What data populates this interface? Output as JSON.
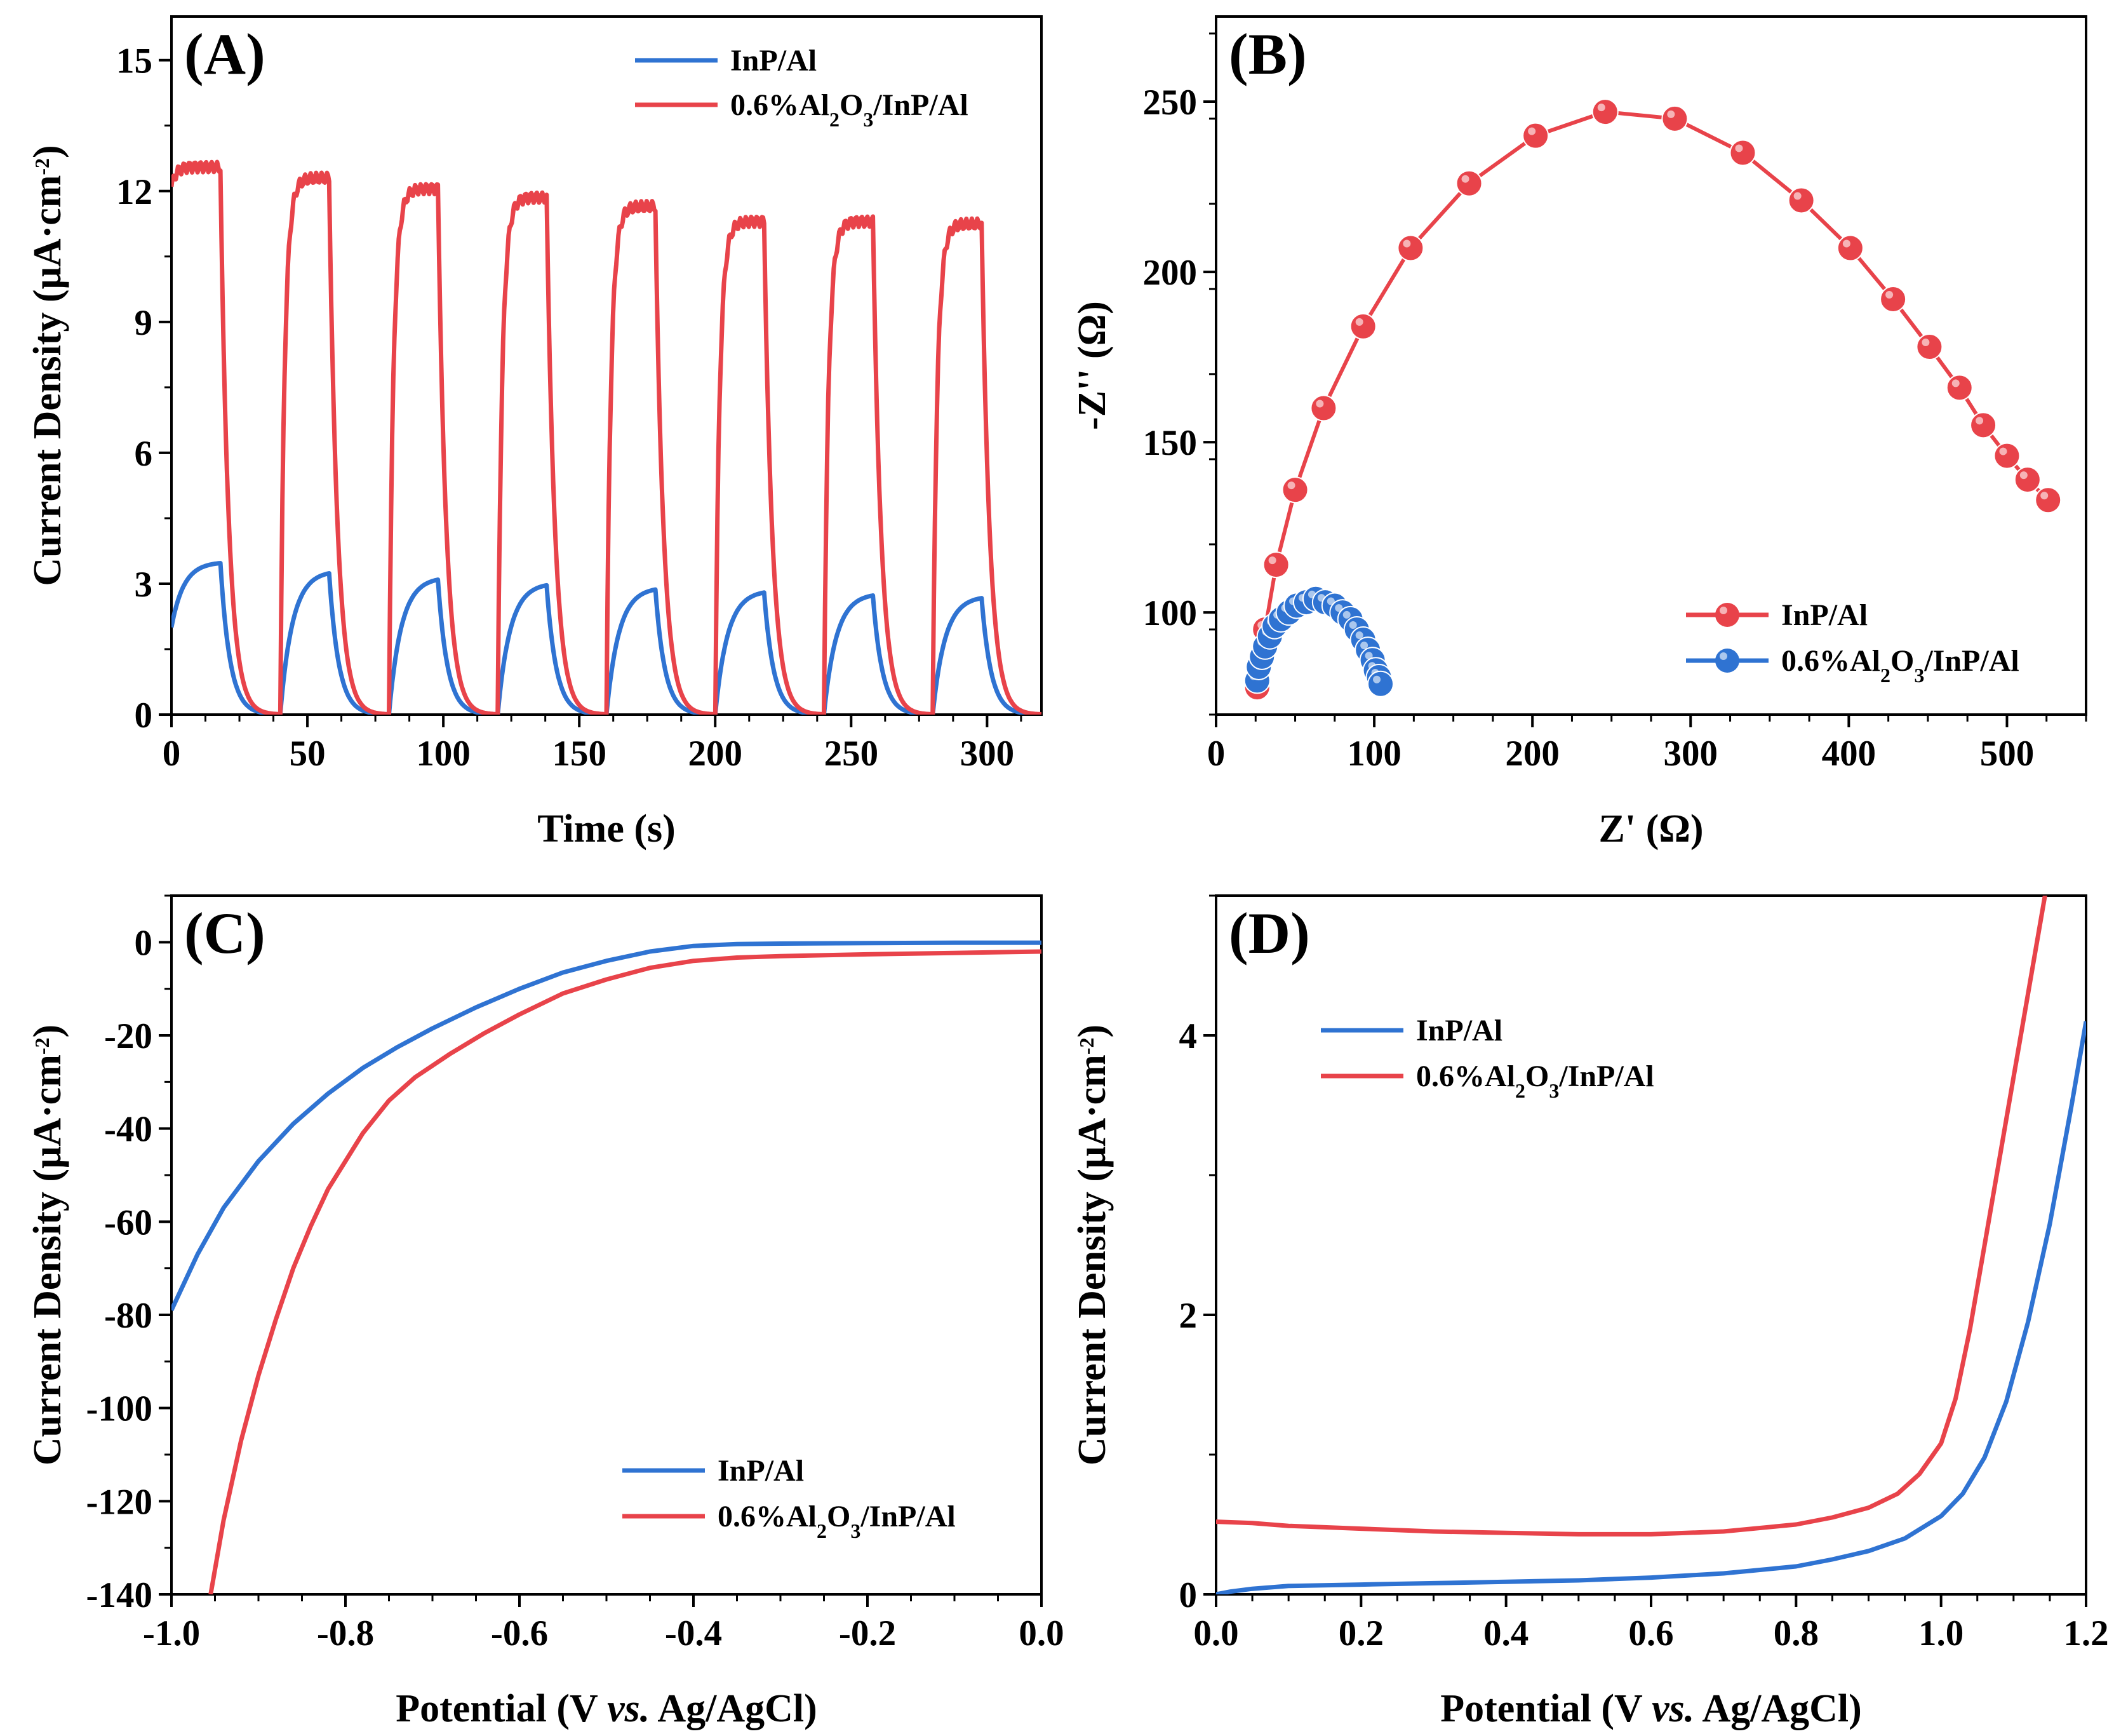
{
  "colors": {
    "blue": "#2f73d2",
    "red": "#e8434a",
    "axis": "#000000"
  },
  "chart_data": [
    {
      "id": "A",
      "panel_label": "(A)",
      "type": "line",
      "title": "",
      "xlabel": "Time (s)",
      "ylabel": "Current Density (μA·cm",
      "ylabel_sup": "-2",
      "ylabel_close": ")",
      "xlim": [
        0,
        320
      ],
      "ylim": [
        0,
        16
      ],
      "xticks": [
        0,
        50,
        100,
        150,
        200,
        250,
        300
      ],
      "yticks": [
        0,
        3,
        6,
        9,
        12,
        15
      ],
      "xtick_labels": [
        "0",
        "50",
        "100",
        "150",
        "200",
        "250",
        "300"
      ],
      "ytick_labels": [
        "0",
        "3",
        "6",
        "9",
        "12",
        "15"
      ],
      "legend": [
        {
          "label": "InP/Al",
          "color": "#2f73d2"
        },
        {
          "label_parts": [
            "0.6%Al",
            "2",
            "O",
            "3",
            "/InP/Al"
          ],
          "color": "#e8434a"
        }
      ],
      "legend_position": "top-right",
      "series": [
        {
          "name": "InP/Al",
          "color": "#2f73d2",
          "cycle_period": 40,
          "on_duration": 18,
          "plateaus": [
            3.5,
            3.3,
            3.15,
            3.02,
            2.92,
            2.85,
            2.78,
            2.72
          ],
          "start_value": 2.0,
          "rise_tau": 4.5,
          "decay_tau": 3.5
        },
        {
          "name": "0.6%Al2O3/InP/Al",
          "color": "#e8434a",
          "cycle_period": 40,
          "on_duration": 18,
          "plateaus": [
            12.55,
            12.3,
            12.05,
            11.85,
            11.65,
            11.3,
            11.3,
            11.25
          ],
          "start_value": 12.1,
          "rise_tau": 1.6,
          "decay_tau": 3.0
        }
      ]
    },
    {
      "id": "B",
      "panel_label": "(B)",
      "type": "scatter",
      "title": "",
      "xlabel": "Z' (Ω)",
      "ylabel": "-Z'' (Ω)",
      "xlim": [
        0,
        550
      ],
      "ylim": [
        70,
        275
      ],
      "xticks": [
        0,
        100,
        200,
        300,
        400,
        500
      ],
      "yticks": [
        100,
        150,
        200,
        250
      ],
      "xtick_labels": [
        "0",
        "100",
        "200",
        "300",
        "400",
        "500"
      ],
      "ytick_labels": [
        "100",
        "150",
        "200",
        "250"
      ],
      "legend": [
        {
          "label": "InP/Al",
          "color": "#e8434a"
        },
        {
          "label_parts": [
            "0.6%Al",
            "2",
            "O",
            "3",
            "/InP/Al"
          ],
          "color": "#2f73d2"
        }
      ],
      "legend_position": "bottom-right",
      "series": [
        {
          "name": "InP/Al",
          "color": "#e8434a",
          "x": [
            26,
            31,
            38,
            50,
            68,
            93,
            123,
            160,
            202,
            246,
            290,
            333,
            370,
            401,
            428,
            451,
            470,
            485,
            500,
            513,
            526
          ],
          "y": [
            78,
            95,
            114,
            136,
            160,
            184,
            207,
            226,
            240,
            247,
            245,
            235,
            221,
            207,
            192,
            178,
            166,
            155,
            146,
            139,
            133
          ]
        },
        {
          "name": "0.6%Al2O3/InP/Al",
          "color": "#2f73d2",
          "x": [
            26,
            27,
            29,
            31,
            34,
            37,
            41,
            46,
            51,
            57,
            63,
            69,
            75,
            80,
            85,
            89,
            93,
            96,
            99,
            101,
            103,
            104
          ],
          "y": [
            80,
            84,
            87,
            90,
            93,
            96,
            98,
            100,
            102,
            103,
            104,
            103,
            102,
            100,
            98,
            95,
            92,
            89,
            86,
            83,
            81,
            79
          ]
        }
      ]
    },
    {
      "id": "C",
      "panel_label": "(C)",
      "type": "line",
      "title": "",
      "xlabel_parts": [
        "Potential (V ",
        "vs.",
        " Ag/AgCl)"
      ],
      "ylabel": "Current Density (μA·cm",
      "ylabel_sup": "-2",
      "ylabel_close": ")",
      "xlim": [
        -1.0,
        0.0
      ],
      "ylim": [
        -140,
        10
      ],
      "xticks": [
        -1.0,
        -0.8,
        -0.6,
        -0.4,
        -0.2,
        0.0
      ],
      "yticks": [
        -140,
        -120,
        -100,
        -80,
        -60,
        -40,
        -20,
        0
      ],
      "xtick_labels": [
        "-1.0",
        "-0.8",
        "-0.6",
        "-0.4",
        "-0.2",
        "0.0"
      ],
      "ytick_labels": [
        "-140",
        "-120",
        "-100",
        "-80",
        "-60",
        "-40",
        "-20",
        "0"
      ],
      "legend": [
        {
          "label": "InP/Al",
          "color": "#2f73d2"
        },
        {
          "label_parts": [
            "0.6%Al",
            "2",
            "O",
            "3",
            "/InP/Al"
          ],
          "color": "#e8434a"
        }
      ],
      "legend_position": "bottom-right",
      "series": [
        {
          "name": "InP/Al",
          "color": "#2f73d2",
          "x": [
            -1.0,
            -0.97,
            -0.94,
            -0.9,
            -0.86,
            -0.82,
            -0.78,
            -0.74,
            -0.7,
            -0.65,
            -0.6,
            -0.55,
            -0.5,
            -0.45,
            -0.4,
            -0.35,
            -0.3,
            -0.2,
            -0.1,
            0.0
          ],
          "y": [
            -79,
            -67,
            -57,
            -47,
            -39,
            -32.5,
            -27,
            -22.5,
            -18.5,
            -14,
            -10,
            -6.5,
            -4,
            -2,
            -0.8,
            -0.4,
            -0.3,
            -0.2,
            -0.1,
            -0.1
          ]
        },
        {
          "name": "0.6%Al2O3/InP/Al",
          "color": "#e8434a",
          "x": [
            -0.955,
            -0.94,
            -0.92,
            -0.9,
            -0.88,
            -0.86,
            -0.84,
            -0.82,
            -0.8,
            -0.78,
            -0.75,
            -0.72,
            -0.68,
            -0.64,
            -0.6,
            -0.55,
            -0.5,
            -0.45,
            -0.4,
            -0.35,
            -0.3,
            -0.2,
            -0.1,
            0.0
          ],
          "y": [
            -140,
            -124,
            -107,
            -93,
            -81,
            -70,
            -61,
            -53,
            -47,
            -41,
            -34,
            -29,
            -24,
            -19.5,
            -15.5,
            -11,
            -8,
            -5.5,
            -4,
            -3.3,
            -3,
            -2.6,
            -2.3,
            -2
          ]
        }
      ]
    },
    {
      "id": "D",
      "panel_label": "(D)",
      "type": "line",
      "title": "",
      "xlabel_parts": [
        "Potential (V ",
        "vs.",
        " Ag/AgCl)"
      ],
      "ylabel": "Current Density (μA·cm",
      "ylabel_sup": "-2",
      "ylabel_close": ")",
      "xlim": [
        0.0,
        1.2
      ],
      "ylim": [
        0,
        5
      ],
      "xticks": [
        0.0,
        0.2,
        0.4,
        0.6,
        0.8,
        1.0,
        1.2
      ],
      "yticks": [
        0,
        2,
        4
      ],
      "xtick_labels": [
        "0.0",
        "0.2",
        "0.4",
        "0.6",
        "0.8",
        "1.0",
        "1.2"
      ],
      "ytick_labels": [
        "0",
        "2",
        "4"
      ],
      "legend": [
        {
          "label": "InP/Al",
          "color": "#2f73d2"
        },
        {
          "label_parts": [
            "0.6%Al",
            "2",
            "O",
            "3",
            "/InP/Al"
          ],
          "color": "#e8434a"
        }
      ],
      "legend_position": "top-left",
      "series": [
        {
          "name": "InP/Al",
          "color": "#2f73d2",
          "x": [
            0.0,
            0.02,
            0.05,
            0.1,
            0.2,
            0.3,
            0.4,
            0.5,
            0.6,
            0.7,
            0.8,
            0.85,
            0.9,
            0.95,
            1.0,
            1.03,
            1.06,
            1.09,
            1.12,
            1.15,
            1.18,
            1.2
          ],
          "y": [
            0.0,
            0.02,
            0.04,
            0.06,
            0.07,
            0.08,
            0.09,
            0.1,
            0.12,
            0.15,
            0.2,
            0.25,
            0.31,
            0.4,
            0.56,
            0.72,
            0.98,
            1.38,
            1.95,
            2.65,
            3.5,
            4.1
          ]
        },
        {
          "name": "0.6%Al2O3/InP/Al",
          "color": "#e8434a",
          "x": [
            0.0,
            0.05,
            0.1,
            0.2,
            0.3,
            0.4,
            0.5,
            0.6,
            0.7,
            0.8,
            0.85,
            0.9,
            0.94,
            0.97,
            1.0,
            1.02,
            1.04,
            1.06,
            1.08,
            1.1,
            1.12,
            1.135,
            1.145
          ],
          "y": [
            0.52,
            0.51,
            0.49,
            0.47,
            0.45,
            0.44,
            0.43,
            0.43,
            0.45,
            0.5,
            0.55,
            0.62,
            0.72,
            0.86,
            1.08,
            1.4,
            1.9,
            2.5,
            3.1,
            3.7,
            4.3,
            4.75,
            5.05
          ]
        }
      ]
    }
  ]
}
